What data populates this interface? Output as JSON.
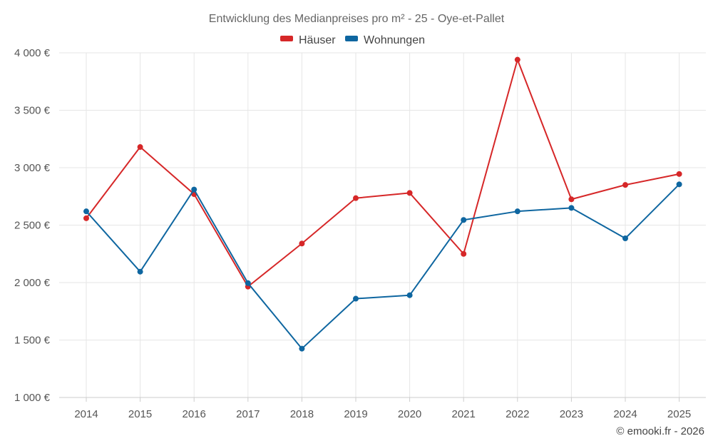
{
  "chart_data": {
    "type": "line",
    "title": "Entwicklung des Medianpreises pro m² - 25 - Oye-et-Pallet",
    "x": [
      "2014",
      "2015",
      "2016",
      "2017",
      "2018",
      "2019",
      "2020",
      "2021",
      "2022",
      "2023",
      "2024",
      "2025"
    ],
    "ylim": [
      1000,
      4000
    ],
    "y_ticks": [
      1000,
      1500,
      2000,
      2500,
      3000,
      3500,
      4000
    ],
    "y_tick_labels": [
      "1 000 €",
      "1 500 €",
      "2 000 €",
      "2 500 €",
      "3 000 €",
      "3 500 €",
      "4 000 €"
    ],
    "legend_position": "top-center",
    "grid": true,
    "series": [
      {
        "name": "Häuser",
        "color": "#d62728",
        "values": [
          2560,
          3180,
          2770,
          1965,
          2340,
          2735,
          2780,
          2250,
          3940,
          2725,
          2850,
          2945
        ]
      },
      {
        "name": "Wohnungen",
        "color": "#0e66a0",
        "values": [
          2620,
          2095,
          2810,
          1995,
          1425,
          1860,
          1890,
          2545,
          2620,
          2650,
          2385,
          2855
        ]
      }
    ]
  },
  "credit": "© emooki.fr - 2026"
}
